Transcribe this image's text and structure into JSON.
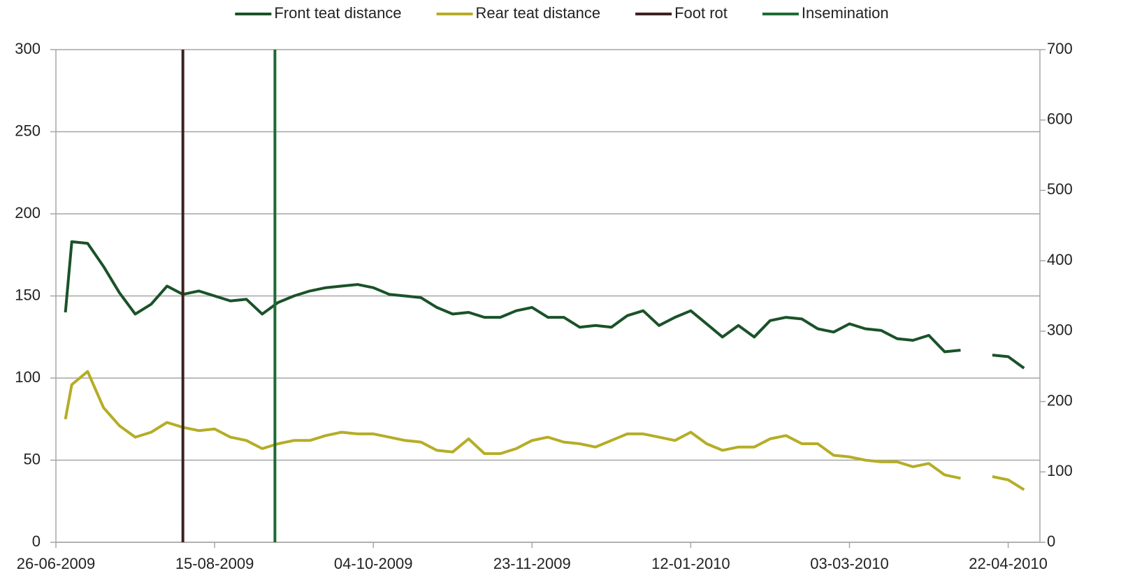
{
  "chart_data": {
    "type": "line",
    "x": [
      "29-06-2009",
      "01-07-2009",
      "06-07-2009",
      "11-07-2009",
      "16-07-2009",
      "21-07-2009",
      "26-07-2009",
      "31-07-2009",
      "05-08-2009",
      "10-08-2009",
      "15-08-2009",
      "20-08-2009",
      "25-08-2009",
      "30-08-2009",
      "04-09-2009",
      "09-09-2009",
      "14-09-2009",
      "19-09-2009",
      "24-09-2009",
      "29-09-2009",
      "04-10-2009",
      "09-10-2009",
      "14-10-2009",
      "19-10-2009",
      "24-10-2009",
      "29-10-2009",
      "03-11-2009",
      "08-11-2009",
      "13-11-2009",
      "18-11-2009",
      "23-11-2009",
      "28-11-2009",
      "03-12-2009",
      "08-12-2009",
      "13-12-2009",
      "18-12-2009",
      "23-12-2009",
      "28-12-2009",
      "02-01-2010",
      "07-01-2010",
      "12-01-2010",
      "17-01-2010",
      "22-01-2010",
      "27-01-2010",
      "01-02-2010",
      "06-02-2010",
      "11-02-2010",
      "16-02-2010",
      "21-02-2010",
      "26-02-2010",
      "03-03-2010",
      "08-03-2010",
      "13-03-2010",
      "18-03-2010",
      "23-03-2010",
      "28-03-2010",
      "02-04-2010",
      "07-04-2010",
      "12-04-2010",
      "17-04-2010",
      "22-04-2010",
      "27-04-2010"
    ],
    "series": [
      {
        "name": "Front teat distance",
        "color": "#1a5229",
        "values": [
          140,
          183,
          182,
          168,
          152,
          139,
          145,
          156,
          151,
          153,
          150,
          147,
          148,
          139,
          146,
          150,
          153,
          155,
          156,
          157,
          155,
          151,
          150,
          149,
          143,
          139,
          140,
          137,
          137,
          141,
          143,
          137,
          137,
          131,
          132,
          131,
          138,
          141,
          132,
          137,
          141,
          133,
          125,
          132,
          125,
          135,
          137,
          136,
          130,
          128,
          133,
          130,
          129,
          124,
          123,
          126,
          116,
          117,
          null,
          114,
          113,
          106
        ]
      },
      {
        "name": "Rear teat distance",
        "color": "#b5ad26",
        "values": [
          75,
          96,
          104,
          82,
          71,
          64,
          67,
          73,
          70,
          68,
          69,
          64,
          62,
          57,
          60,
          62,
          62,
          65,
          67,
          66,
          66,
          64,
          62,
          61,
          56,
          55,
          63,
          54,
          54,
          57,
          62,
          64,
          61,
          60,
          58,
          62,
          66,
          66,
          64,
          62,
          67,
          60,
          56,
          58,
          58,
          63,
          65,
          60,
          60,
          53,
          52,
          50,
          49,
          49,
          46,
          48,
          41,
          39,
          null,
          40,
          38,
          32
        ]
      }
    ],
    "events": [
      {
        "name": "Foot rot",
        "color": "#3d2220",
        "x": "05-08-2009"
      },
      {
        "name": "Insemination",
        "color": "#1e6b35",
        "x": "03-09-2009"
      }
    ],
    "xlim": [
      "26-06-2009",
      "02-05-2010"
    ],
    "xticks": [
      "26-06-2009",
      "15-08-2009",
      "04-10-2009",
      "23-11-2009",
      "12-01-2010",
      "03-03-2010",
      "22-04-2010"
    ],
    "ylim": [
      0,
      300
    ],
    "yticks": [
      0,
      50,
      100,
      150,
      200,
      250,
      300
    ],
    "y2lim": [
      0,
      700
    ],
    "y2ticks": [
      0,
      100,
      200,
      300,
      400,
      500,
      600,
      700
    ],
    "grid": true,
    "legend": "top"
  }
}
